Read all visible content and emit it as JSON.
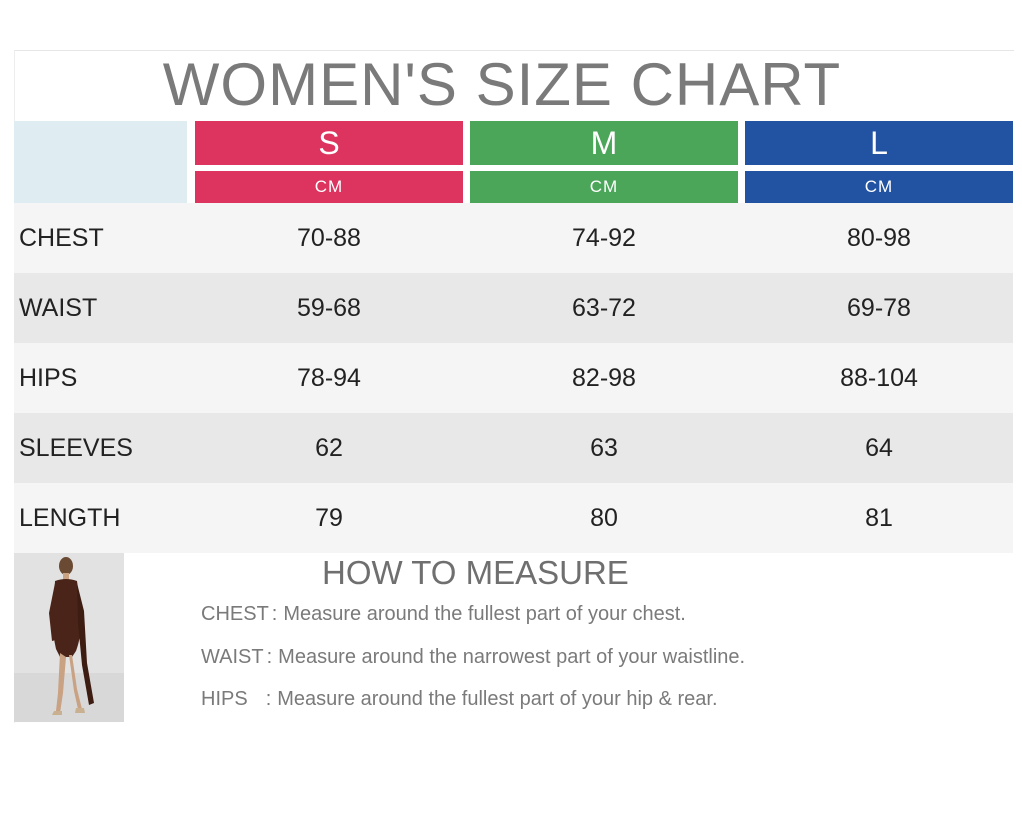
{
  "title": "WOMEN'S SIZE CHART",
  "sizes": [
    {
      "label": "S",
      "unit": "CM",
      "color": "#dc335f"
    },
    {
      "label": "M",
      "unit": "CM",
      "color": "#4ba65a"
    },
    {
      "label": "L",
      "unit": "CM",
      "color": "#2253a2"
    }
  ],
  "rows": [
    {
      "label": "CHEST",
      "s": "70-88",
      "m": "74-92",
      "l": "80-98"
    },
    {
      "label": "WAIST",
      "s": "59-68",
      "m": "63-72",
      "l": "69-78"
    },
    {
      "label": "HIPS",
      "s": "78-94",
      "m": "82-98",
      "l": "88-104"
    },
    {
      "label": "SLEEVES",
      "s": "62",
      "m": "63",
      "l": "64"
    },
    {
      "label": "LENGTH",
      "s": "79",
      "m": "80",
      "l": "81"
    }
  ],
  "how_to_measure": {
    "title": "HOW TO MEASURE",
    "tips": [
      {
        "key": "CHEST",
        "sep": ":",
        "text": "Measure around the fullest part of your chest."
      },
      {
        "key": "WAIST",
        "sep": ":",
        "text": "Measure around the narrowest part of your waistline."
      },
      {
        "key": "HIPS",
        "sep": ":",
        "text": "Measure around the fullest part of your hip & rear."
      }
    ]
  },
  "model_photo_icon": "model-photo"
}
